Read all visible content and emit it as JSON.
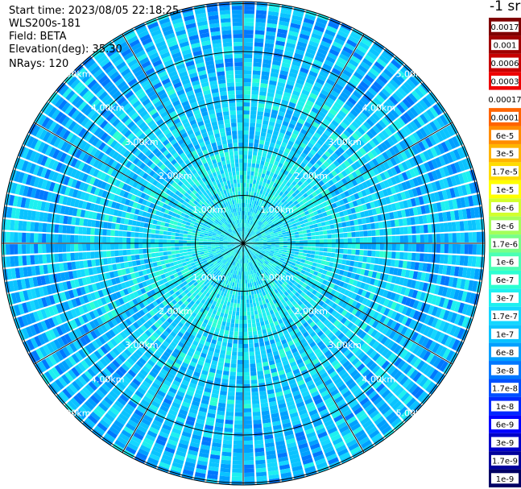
{
  "header": {
    "start_time": "Start time: 2023/08/05 22:18:25",
    "instrument": "WLS200s-181",
    "field": "Field: BETA",
    "elevation": "Elevation(deg): 35.30",
    "nrays": "NRays: 120"
  },
  "colorbar": {
    "unit_label": "-1 sr",
    "entries": [
      {
        "label": "0.0017",
        "color": "#7f0000"
      },
      {
        "label": "0.001",
        "color": "#a00000"
      },
      {
        "label": "0.0006",
        "color": "#c80000"
      },
      {
        "label": "0.0003",
        "color": "#ee0000"
      },
      {
        "label": "0.00017",
        "color": "#ffffff"
      },
      {
        "label": "0.0001",
        "color": "#ff6400"
      },
      {
        "label": "6e-5",
        "color": "#ff8c00"
      },
      {
        "label": "3e-5",
        "color": "#ffb400"
      },
      {
        "label": "1.7e-5",
        "color": "#ffdc00"
      },
      {
        "label": "1e-5",
        "color": "#ffff00"
      },
      {
        "label": "6e-6",
        "color": "#d2ff2d"
      },
      {
        "label": "3e-6",
        "color": "#a5ff5a"
      },
      {
        "label": "1.7e-6",
        "color": "#78ff87"
      },
      {
        "label": "1e-6",
        "color": "#4bffb4"
      },
      {
        "label": "6e-7",
        "color": "#2dffd2"
      },
      {
        "label": "3e-7",
        "color": "#1ef0f0"
      },
      {
        "label": "1.7e-7",
        "color": "#14d7ff"
      },
      {
        "label": "1e-7",
        "color": "#0ac3ff"
      },
      {
        "label": "6e-8",
        "color": "#00a0ff"
      },
      {
        "label": "3e-8",
        "color": "#0078ff"
      },
      {
        "label": "1.7e-8",
        "color": "#0050ff"
      },
      {
        "label": "1e-8",
        "color": "#0028ff"
      },
      {
        "label": "6e-9",
        "color": "#0000ff"
      },
      {
        "label": "3e-9",
        "color": "#0000c8"
      },
      {
        "label": "1.7e-9",
        "color": "#00009b"
      },
      {
        "label": "1e-9",
        "color": "#000064"
      }
    ]
  },
  "chart_data": {
    "type": "heatmap",
    "projection": "polar PPI",
    "rays": 120,
    "range_ring_labels": [
      "1.00km",
      "2.00km",
      "3.00km",
      "4.00km",
      "5.00km"
    ],
    "field": "BETA",
    "description_of_values": "backscatter beta mostly 6e-8 to 3e-7 sr^-1, lower near range, noisier far range"
  }
}
